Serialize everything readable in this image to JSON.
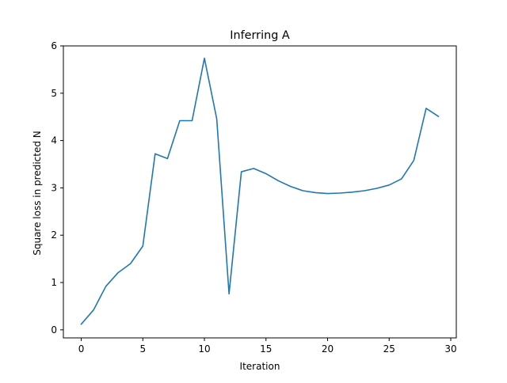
{
  "chart_data": {
    "type": "line",
    "title": "Inferring A",
    "xlabel": "Iteration",
    "ylabel": "Square loss in predicted N",
    "xlim": [
      -1.45,
      30.45
    ],
    "ylim": [
      -0.17,
      6.0
    ],
    "x_ticks": [
      0,
      5,
      10,
      15,
      20,
      25,
      30
    ],
    "y_ticks": [
      0,
      1,
      2,
      3,
      4,
      5,
      6
    ],
    "grid": false,
    "legend": "none",
    "series": [
      {
        "color": "#1f77b4",
        "x": [
          0,
          1,
          2,
          3,
          4,
          5,
          6,
          7,
          8,
          9,
          10,
          11,
          12,
          13,
          14,
          15,
          16,
          17,
          18,
          19,
          20,
          21,
          22,
          23,
          24,
          25,
          26,
          27,
          28,
          29
        ],
        "y": [
          0.12,
          0.42,
          0.92,
          1.21,
          1.4,
          1.77,
          3.72,
          3.62,
          4.42,
          4.42,
          5.74,
          4.46,
          0.76,
          3.34,
          3.41,
          3.3,
          3.15,
          3.03,
          2.94,
          2.9,
          2.88,
          2.89,
          2.91,
          2.94,
          2.99,
          3.06,
          3.19,
          3.58,
          4.68,
          4.51
        ]
      }
    ]
  }
}
